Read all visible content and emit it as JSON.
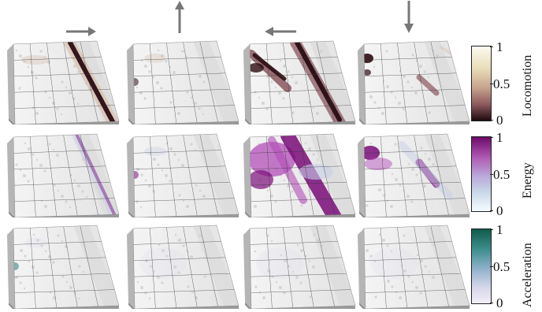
{
  "directions": [
    {
      "arrow": "right-arrow"
    },
    {
      "arrow": "up-arrow"
    },
    {
      "arrow": "left-arrow"
    },
    {
      "arrow": "down-arrow"
    }
  ],
  "rows": [
    {
      "name": "Locomotion",
      "colorbar": {
        "top": "#fbfbf0",
        "mid": "#e4cfa6",
        "low": "#b98b7f",
        "bottom": "#1e0b0f"
      },
      "ticks": [
        "1",
        "0.5",
        "0"
      ],
      "cells": [
        "strong-diagonal-stripe",
        "faint-spot",
        "two-stripes",
        "spots-and-faint-stripe"
      ]
    },
    {
      "name": "Energy",
      "colorbar": {
        "top": "#6d0a6a",
        "mid": "#b479c5",
        "low": "#a9c2d9",
        "bottom": "#f5fbff"
      },
      "ticks": [
        "1",
        "0.5",
        "0"
      ],
      "cells": [
        "thin-diagonal-stripe",
        "faint-spot",
        "broad-purple-field",
        "spots-and-stripe"
      ]
    },
    {
      "name": "Acceleration",
      "colorbar": {
        "top": "#0f5c4a",
        "mid": "#5aa4a6",
        "low": "#b4bfdc",
        "bottom": "#f3eef7"
      },
      "ticks": [
        "1",
        "0.5",
        "0"
      ],
      "cells": [
        "faint-spot",
        "near-zero",
        "near-zero",
        "near-zero"
      ]
    }
  ]
}
